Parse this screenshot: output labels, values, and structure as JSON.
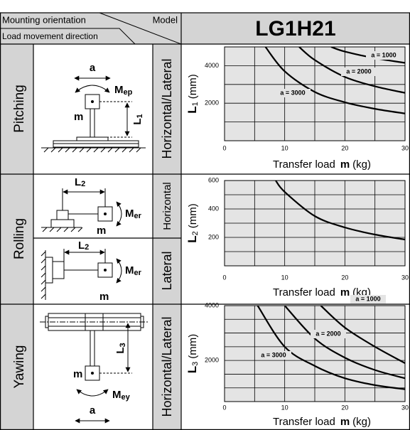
{
  "table": {
    "header": {
      "orientation": "Mounting orientation",
      "model_label": "Model",
      "direction": "Load movement direction",
      "model": "LG1H21"
    },
    "rows": [
      {
        "name": "Pitching",
        "orientations": [
          "Horizontal/Lateral"
        ],
        "labels": {
          "a": "a",
          "moment": [
            "M",
            "ep"
          ],
          "mass": "m",
          "length": [
            "L",
            "1"
          ]
        }
      },
      {
        "name": "Rolling",
        "orientations": [
          "Horizontal",
          "Lateral"
        ],
        "labels": {
          "moment": [
            "M",
            "er"
          ],
          "mass": "m",
          "length": [
            "L",
            "2"
          ]
        }
      },
      {
        "name": "Yawing",
        "orientations": [
          "Horizontal/Lateral"
        ],
        "labels": {
          "a": "a",
          "moment": [
            "M",
            "ey"
          ],
          "mass": "m",
          "length": [
            "L",
            "3"
          ]
        }
      }
    ]
  },
  "chart_data": [
    {
      "type": "line",
      "y_label": [
        "L",
        "1",
        "(mm)"
      ],
      "x_label": [
        "Transfer load",
        "m",
        "(kg)"
      ],
      "xlim": [
        0,
        30
      ],
      "xticks": [
        0,
        10,
        20,
        30
      ],
      "xgrid": [
        5,
        10,
        15,
        20,
        25
      ],
      "ylim": [
        0,
        5000
      ],
      "yticks": [
        2000,
        4000
      ],
      "ygrid": [
        1000,
        2000,
        3000,
        4000
      ],
      "series": [
        {
          "name": "a = 1000",
          "color": "#000000",
          "x": [
            17.7,
            20,
            25,
            30
          ],
          "values": [
            5000,
            4750,
            4400,
            4150
          ]
        },
        {
          "name": "a = 2000",
          "color": "#000000",
          "x": [
            12.4,
            15,
            20,
            25,
            30
          ],
          "values": [
            5000,
            4300,
            3400,
            2900,
            2550
          ]
        },
        {
          "name": "a = 3000",
          "color": "#000000",
          "x": [
            6.8,
            10,
            15,
            20,
            25,
            30
          ],
          "values": [
            5000,
            3700,
            2600,
            2050,
            1700,
            1450
          ]
        }
      ]
    },
    {
      "type": "line",
      "y_label": [
        "L",
        "2",
        "(mm)"
      ],
      "x_label": [
        "Transfer load",
        "m",
        "(kg)"
      ],
      "xlim": [
        0,
        30
      ],
      "xticks": [
        0,
        10,
        20,
        30
      ],
      "xgrid": [
        5,
        10,
        15,
        20,
        25
      ],
      "ylim": [
        0,
        600
      ],
      "yticks": [
        200,
        400,
        600
      ],
      "ygrid": [
        100,
        200,
        300,
        400,
        500
      ],
      "series": [
        {
          "color": "#000000",
          "x": [
            8.5,
            10,
            15,
            20,
            25,
            30
          ],
          "values": [
            600,
            520,
            350,
            270,
            220,
            185
          ]
        }
      ]
    },
    {
      "type": "line",
      "y_label": [
        "L",
        "3",
        "(mm)"
      ],
      "x_label": [
        "Transfer load",
        "m",
        "(kg)"
      ],
      "xlim": [
        0,
        30
      ],
      "xticks": [
        0,
        10,
        20,
        30
      ],
      "xgrid": [
        5,
        10,
        15,
        20,
        25
      ],
      "ylim": [
        500,
        4000
      ],
      "yticks": [
        2000,
        4000
      ],
      "ygrid": [
        1000,
        1500,
        2000,
        2500,
        3000,
        3500
      ],
      "series": [
        {
          "name": "a = 1000",
          "color": "#000000",
          "x": [
            16,
            20,
            25,
            30
          ],
          "values": [
            4000,
            3200,
            2500,
            1900
          ]
        },
        {
          "name": "a = 2000",
          "color": "#000000",
          "x": [
            10,
            15,
            20,
            25,
            30
          ],
          "values": [
            4000,
            2800,
            2100,
            1650,
            1350
          ]
        },
        {
          "name": "a = 3000",
          "color": "#000000",
          "x": [
            5.5,
            10,
            15,
            20,
            25,
            30
          ],
          "values": [
            4000,
            2500,
            1800,
            1350,
            1100,
            950
          ]
        }
      ]
    }
  ]
}
